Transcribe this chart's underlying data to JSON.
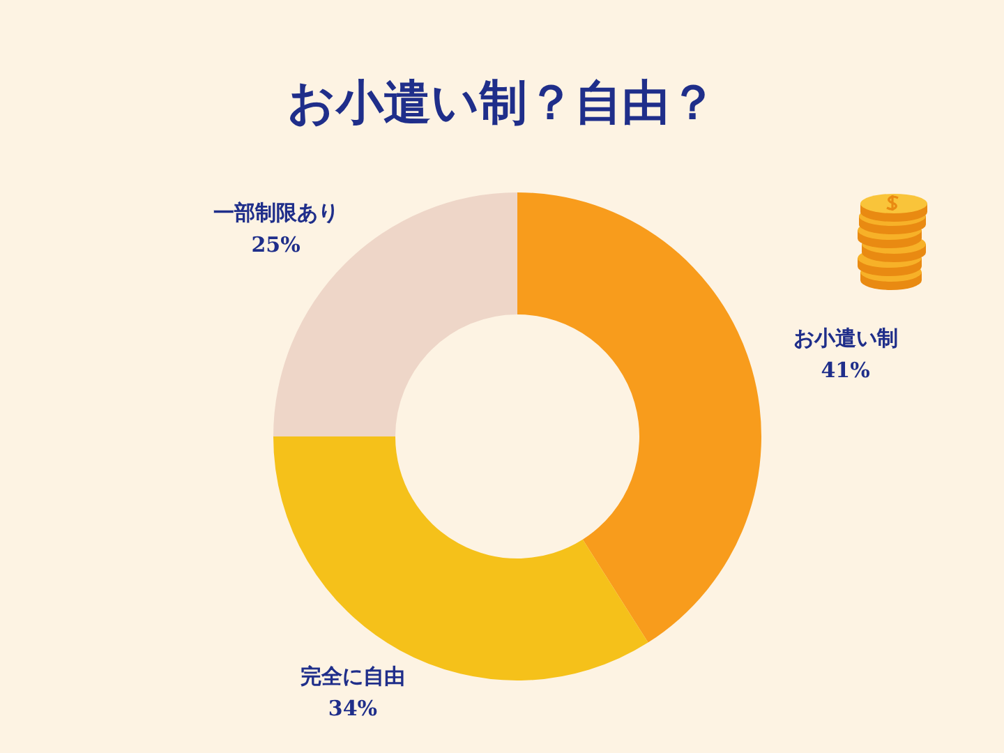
{
  "chart_data": {
    "type": "donut",
    "title": "お小遣い制？自由？",
    "categories": [
      "お小遣い制",
      "完全に自由",
      "一部制限あり"
    ],
    "values": [
      41,
      34,
      25
    ],
    "colors": [
      "#f89c1c",
      "#f5c11a",
      "#eed6c8"
    ],
    "value_labels": [
      "41%",
      "34%",
      "25%"
    ],
    "legend": false
  }
}
